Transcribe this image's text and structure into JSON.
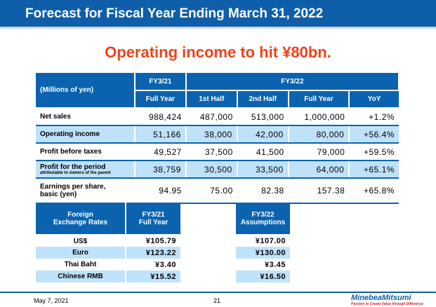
{
  "title": "Forecast for Fiscal Year Ending March 31, 2022",
  "headline": "Operating income to hit ¥80bn.",
  "main_table": {
    "unit_label": "(Millions of yen)",
    "fy21": "FY3/21",
    "fy22": "FY3/22",
    "columns": [
      "Full Year",
      "1st Half",
      "2nd Half",
      "Full Year",
      "YoY"
    ],
    "rows": [
      {
        "label": "Net sales",
        "values": [
          "988,424",
          "487,000",
          "513,000",
          "1,000,000",
          "+1.2%"
        ]
      },
      {
        "label": "Operating income",
        "values": [
          "51,166",
          "38,000",
          "42,000",
          "80,000",
          "+56.4%"
        ]
      },
      {
        "label": "Profit before taxes",
        "values": [
          "49,527",
          "37,500",
          "41,500",
          "79,000",
          "+59.5%"
        ]
      },
      {
        "label": "Profit for the period",
        "sublabel": "attributable to owners of the parent",
        "values": [
          "38,759",
          "30,500",
          "33,500",
          "64,000",
          "+65.1%"
        ]
      },
      {
        "label": "Earnings per share,",
        "label2": "basic  (yen)",
        "values": [
          "94.95",
          "75.00",
          "82.38",
          "157.38",
          "+65.8%"
        ]
      }
    ]
  },
  "fx_table": {
    "header1": "Foreign",
    "header2": "Exchange Rates",
    "col_a1": "FY3/21",
    "col_a2": "Full Year",
    "col_b1": "FY3/22",
    "col_b2": "Assumptions",
    "rows": [
      {
        "label": "US$",
        "fy21": "¥105.79",
        "fy22": "¥107.00"
      },
      {
        "label": "Euro",
        "fy21": "¥123.22",
        "fy22": "¥130.00"
      },
      {
        "label": "Thai Baht",
        "fy21": "¥3.40",
        "fy22": "¥3.45"
      },
      {
        "label": "Chinese RMB",
        "fy21": "¥15.52",
        "fy22": "¥16.50"
      }
    ]
  },
  "footer": {
    "date": "May 7, 2021",
    "page": "21",
    "logo": "MinebeaMitsumi",
    "tagline": "Passion to Create Value through Difference"
  },
  "colors": {
    "header_blue": "#0b63b0",
    "alt_row": "#bfe2fb",
    "headline": "#f0421a"
  }
}
